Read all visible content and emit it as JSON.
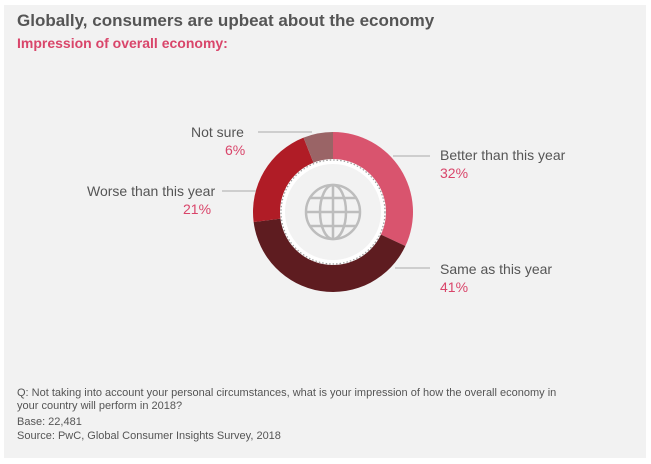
{
  "chart_data": {
    "type": "pie",
    "title": "Globally, consumers are upbeat about the economy",
    "subtitle": "Impression of overall economy:",
    "slices": [
      {
        "label": "Better than this year",
        "value": 32,
        "display": "32%",
        "color": "#d9546e"
      },
      {
        "label": "Same as this year",
        "value": 41,
        "display": "41%",
        "color": "#5e1c20"
      },
      {
        "label": "Worse than this year",
        "value": 21,
        "display": "21%",
        "color": "#b01c26"
      },
      {
        "label": "Not sure",
        "value": 6,
        "display": "6%",
        "color": "#9a6466"
      }
    ],
    "center_icon": "globe-icon"
  },
  "footer": {
    "question": "Q: Not taking into account your personal circumstances, what is your impression of how the overall economy in",
    "question2": "your country will perform in 2018?",
    "base": "Base: 22,481",
    "source": "Source: PwC, Global Consumer Insights Survey, 2018"
  }
}
